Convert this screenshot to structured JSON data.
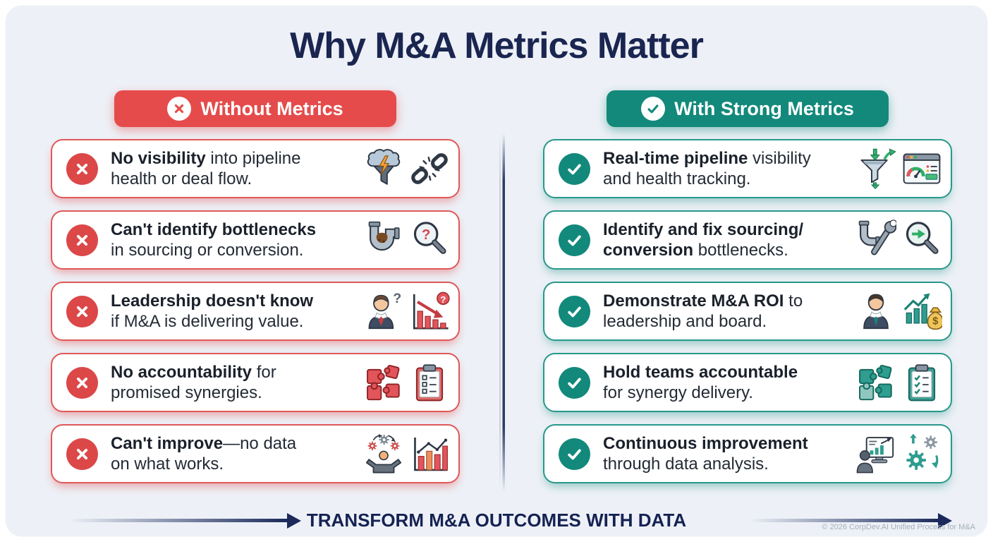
{
  "title": "Why M&A Metrics Matter",
  "colors": {
    "background": "#edf1f7",
    "navy": "#1a2550",
    "red": "#e54b4b",
    "teal": "#12897b",
    "card_text": "#242b35"
  },
  "columns": [
    {
      "id": "without",
      "tone": "red",
      "header": {
        "label": "Without Metrics",
        "badge": "x"
      },
      "items": [
        {
          "lines": [
            [
              {
                "t": "No visibility",
                "b": true
              },
              {
                "t": " into pipeline",
                "b": false
              }
            ],
            [
              {
                "t": "health or deal flow.",
                "b": false
              }
            ]
          ],
          "icons": [
            "storm-funnel-icon",
            "broken-chain-icon"
          ]
        },
        {
          "lines": [
            [
              {
                "t": "Can't identify bottlenecks",
                "b": true
              }
            ],
            [
              {
                "t": "in sourcing or conversion.",
                "b": false
              }
            ]
          ],
          "icons": [
            "clogged-pipe-icon",
            "magnifier-question-icon"
          ]
        },
        {
          "lines": [
            [
              {
                "t": "Leadership doesn't know",
                "b": true
              }
            ],
            [
              {
                "t": "if M&A is delivering value.",
                "b": false
              }
            ]
          ],
          "icons": [
            "confused-businessman-icon",
            "declining-chart-icon"
          ]
        },
        {
          "lines": [
            [
              {
                "t": "No accountability",
                "b": true
              },
              {
                "t": " for",
                "b": false
              }
            ],
            [
              {
                "t": "promised synergies.",
                "b": false
              }
            ]
          ],
          "icons": [
            "broken-puzzle-icon",
            "clipboard-checklist-icon"
          ]
        },
        {
          "lines": [
            [
              {
                "t": "Can't improve",
                "b": true
              },
              {
                "t": "—no data",
                "b": false
              }
            ],
            [
              {
                "t": "on what works.",
                "b": false
              }
            ]
          ],
          "icons": [
            "person-gears-icon",
            "bar-chart-trend-icon"
          ]
        }
      ]
    },
    {
      "id": "with",
      "tone": "teal",
      "header": {
        "label": "With Strong Metrics",
        "badge": "check"
      },
      "items": [
        {
          "lines": [
            [
              {
                "t": "Real-time pipeline",
                "b": true
              },
              {
                "t": " visibility",
                "b": false
              }
            ],
            [
              {
                "t": "and health tracking.",
                "b": false
              }
            ]
          ],
          "icons": [
            "funnel-arrows-icon",
            "dashboard-gauge-icon"
          ]
        },
        {
          "lines": [
            [
              {
                "t": "Identify and fix sourcing/",
                "b": true
              }
            ],
            [
              {
                "t": "conversion",
                "b": true
              },
              {
                "t": " bottlenecks.",
                "b": false
              }
            ]
          ],
          "icons": [
            "pipe-wrench-icon",
            "magnifier-arrow-icon"
          ]
        },
        {
          "lines": [
            [
              {
                "t": "Demonstrate M&A ROI",
                "b": true
              },
              {
                "t": " to",
                "b": false
              }
            ],
            [
              {
                "t": "leadership and board.",
                "b": false
              }
            ]
          ],
          "icons": [
            "businessman-icon",
            "money-growth-icon"
          ]
        },
        {
          "lines": [
            [
              {
                "t": "Hold teams accountable",
                "b": true
              }
            ],
            [
              {
                "t": "for synergy delivery.",
                "b": false
              }
            ]
          ],
          "icons": [
            "teal-puzzle-icon",
            "clipboard-checks-icon"
          ]
        },
        {
          "lines": [
            [
              {
                "t": "Continuous improvement",
                "b": true
              }
            ],
            [
              {
                "t": "through data analysis.",
                "b": false
              }
            ]
          ],
          "icons": [
            "analyst-monitor-icon",
            "gears-icon"
          ]
        }
      ]
    }
  ],
  "footer": {
    "text": "TRANSFORM M&A OUTCOMES WITH DATA",
    "copyright": "© 2026 CorpDev.AI Unified Process for M&A"
  }
}
